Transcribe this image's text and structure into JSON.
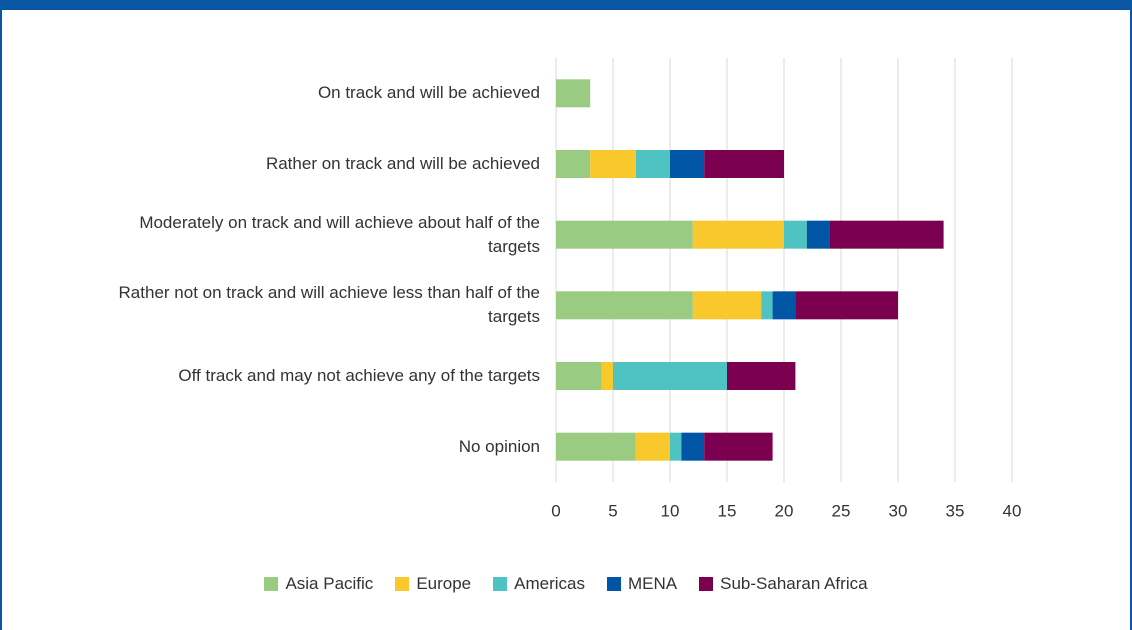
{
  "chart_data": {
    "type": "stacked-barh",
    "categories": [
      "On track and will be achieved",
      "Rather on track and will be achieved",
      "Moderately on track and will achieve about half of the targets",
      "Rather not on track and will achieve less than half of the targets",
      "Off track and may not achieve any of the targets",
      "No opinion"
    ],
    "series": [
      {
        "name": "Asia Pacific",
        "color": "#99cc82",
        "values": [
          3,
          3,
          12,
          12,
          4,
          7
        ]
      },
      {
        "name": "Europe",
        "color": "#f9c82d",
        "values": [
          0,
          4,
          8,
          6,
          1,
          3
        ]
      },
      {
        "name": "Americas",
        "color": "#4fc3c1",
        "values": [
          0,
          3,
          2,
          1,
          10,
          1
        ]
      },
      {
        "name": "MENA",
        "color": "#0055a5",
        "values": [
          0,
          3,
          2,
          2,
          0,
          2
        ]
      },
      {
        "name": "Sub-Saharan Africa",
        "color": "#7b0050",
        "values": [
          0,
          7,
          10,
          9,
          6,
          6
        ]
      }
    ],
    "xlim": [
      0,
      40
    ],
    "xticks": [
      0,
      5,
      10,
      15,
      20,
      25,
      30,
      35,
      40
    ],
    "grid": true
  }
}
